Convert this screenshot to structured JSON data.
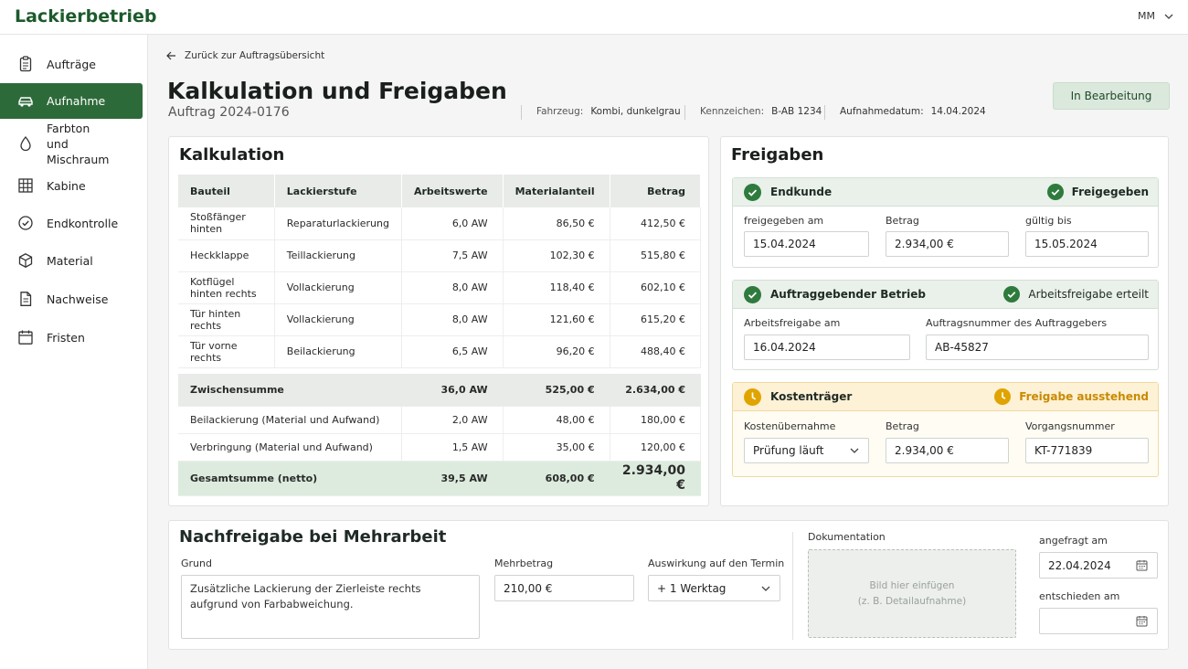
{
  "app": {
    "brand": "Lackierbetrieb",
    "user": "MM"
  },
  "sidebar": {
    "items": [
      {
        "label": "Aufträge",
        "icon": "clipboard-icon"
      },
      {
        "label": "Aufnahme",
        "icon": "car-icon",
        "active": true
      },
      {
        "label": "Farbton und Mischraum",
        "icon": "droplet-icon"
      },
      {
        "label": "Kabine",
        "icon": "grid-icon"
      },
      {
        "label": "Endkontrolle",
        "icon": "check-circle-icon"
      },
      {
        "label": "Material",
        "icon": "box-icon"
      },
      {
        "label": "Nachweise",
        "icon": "document-icon"
      },
      {
        "label": "Fristen",
        "icon": "calendar-icon"
      }
    ]
  },
  "header": {
    "back_label": "Zurück zur Auftragsübersicht",
    "title": "Kalkulation und Freigaben",
    "subtitle": "Auftrag 2024-0176",
    "vehicle_label": "Fahrzeug:",
    "vehicle_value": "Kombi, dunkelgrau",
    "plate_label": "Kennzeichen:",
    "plate_value": "B-AB 1234",
    "date_label": "Aufnahmedatum:",
    "date_value": "14.04.2024",
    "status": "In Bearbeitung"
  },
  "calc": {
    "title": "Kalkulation",
    "columns": [
      "Bauteil",
      "Lackierstufe",
      "Arbeitswerte",
      "Materialanteil",
      "Betrag"
    ],
    "rows": [
      [
        "Stoßfänger hinten",
        "Reparaturlackierung",
        "6,0 AW",
        "86,50 €",
        "412,50 €"
      ],
      [
        "Heckklappe",
        "Teillackierung",
        "7,5 AW",
        "102,30 €",
        "515,80 €"
      ],
      [
        "Kotflügel hinten rechts",
        "Vollackierung",
        "8,0 AW",
        "118,40 €",
        "602,10 €"
      ],
      [
        "Tür hinten rechts",
        "Vollackierung",
        "8,0 AW",
        "121,60 €",
        "615,20 €"
      ],
      [
        "Tür vorne rechts",
        "Beilackierung",
        "6,5 AW",
        "96,20 €",
        "488,40 €"
      ]
    ],
    "subtotal": {
      "label": "Zwischensumme",
      "aw": "36,0 AW",
      "material": "525,00 €",
      "amount": "2.634,00 €"
    },
    "extras": [
      {
        "label": "Beilackierung (Material und Aufwand)",
        "aw": "2,0 AW",
        "material": "48,00 €",
        "amount": "180,00 €"
      },
      {
        "label": "Verbringung (Material und Aufwand)",
        "aw": "1,5 AW",
        "material": "35,00 €",
        "amount": "120,00 €"
      }
    ],
    "total": {
      "label": "Gesamtsumme (netto)",
      "aw": "39,5 AW",
      "material": "608,00 €",
      "amount": "2.934,00 €"
    }
  },
  "approvals": {
    "title": "Freigaben",
    "customer": {
      "name": "Endkunde",
      "status": "Freigegeben",
      "f1_label": "freigegeben am",
      "f1_value": "15.04.2024",
      "f2_label": "Betrag",
      "f2_value": "2.934,00 €",
      "f3_label": "gültig bis",
      "f3_value": "15.05.2024"
    },
    "company": {
      "name": "Auftraggebender Betrieb",
      "status": "Arbeitsfreigabe erteilt",
      "f1_label": "Arbeitsfreigabe am",
      "f1_value": "16.04.2024",
      "f2_label": "Auftragsnummer des Auftraggebers",
      "f2_value": "AB-45827"
    },
    "payer": {
      "name": "Kostenträger",
      "status": "Freigabe ausstehend",
      "f1_label": "Kostenübernahme",
      "f1_value": "Prüfung läuft",
      "f2_label": "Betrag",
      "f2_value": "2.934,00 €",
      "f3_label": "Vorgangsnummer",
      "f3_value": "KT-771839"
    }
  },
  "rework": {
    "title": "Nachfreigabe bei Mehrarbeit",
    "reason_label": "Grund",
    "reason_value": "Zusätzliche Lackierung der Zierleiste rechts aufgrund von Farbabweichung.",
    "amount_label": "Mehrbetrag",
    "amount_value": "210,00 €",
    "impact_label": "Auswirkung auf den Termin",
    "impact_value": "+ 1 Werktag",
    "doc_label": "Dokumentation",
    "doc_hint1": "Bild hier einfügen",
    "doc_hint2": "(z. B. Detailaufnahme)",
    "requested_label": "angefragt am",
    "requested_value": "22.04.2024",
    "decided_label": "entschieden am",
    "decided_value": ""
  },
  "colors": {
    "brand": "#1c5a2c",
    "active_nav": "#2d6a3a",
    "success": "#2f7a3d",
    "warning": "#e0a400"
  }
}
